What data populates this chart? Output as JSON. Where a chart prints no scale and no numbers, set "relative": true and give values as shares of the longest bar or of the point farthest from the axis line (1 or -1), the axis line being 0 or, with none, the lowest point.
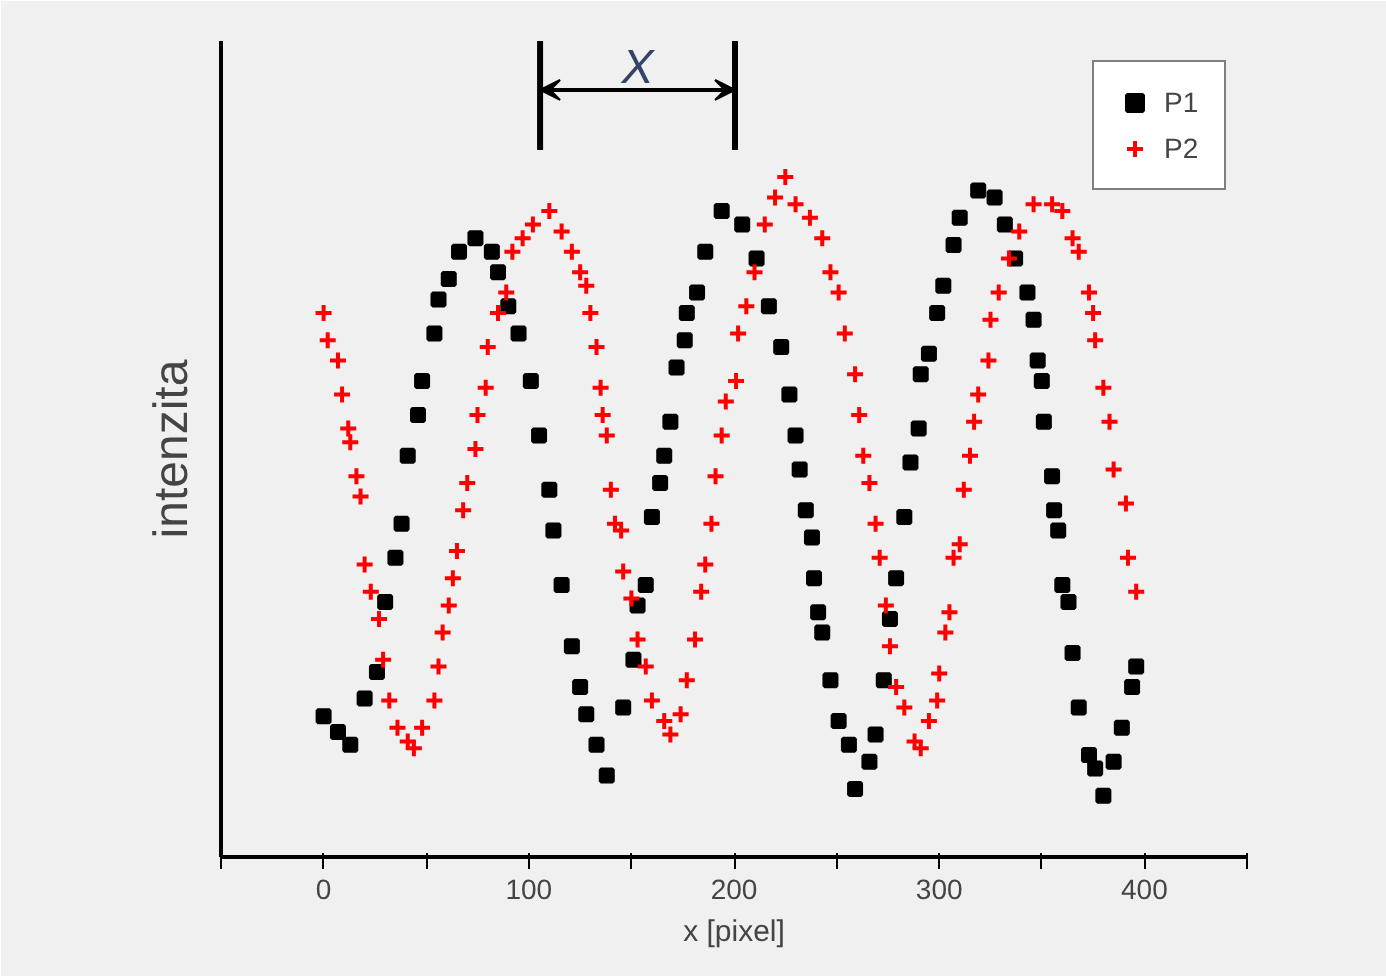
{
  "chart_data": {
    "type": "scatter",
    "relative": true,
    "xlabel": "x [pixel]",
    "ylabel": "intenzita",
    "xlim": [
      -50,
      450
    ],
    "xticks": [
      {
        "value": -50,
        "label": null
      },
      0,
      {
        "value": 50,
        "label": null
      },
      100,
      {
        "value": 150,
        "label": null
      },
      200,
      {
        "value": 250,
        "label": null
      },
      300,
      {
        "value": 350,
        "label": null
      },
      400,
      {
        "value": 450,
        "label": null
      }
    ],
    "legend": "top right",
    "grid": false,
    "annotations": [
      "X"
    ],
    "series": [
      {
        "name": "P1",
        "color": "#000000",
        "marker": "square",
        "x": [
          0,
          7,
          13,
          20,
          26,
          30,
          35,
          38,
          41,
          46,
          48,
          54,
          56,
          61,
          66,
          74,
          82,
          85,
          90,
          95,
          101,
          105,
          110,
          112,
          116,
          121,
          125,
          128,
          133,
          138,
          146,
          151,
          153,
          157,
          160,
          164,
          166,
          169,
          172,
          176,
          177,
          182,
          186,
          194,
          204,
          211,
          217,
          223,
          227,
          230,
          232,
          235,
          238,
          239,
          241,
          243,
          247,
          251,
          256,
          259,
          266,
          269,
          273,
          276,
          279,
          283,
          286,
          290,
          291,
          295,
          299,
          302,
          307,
          310,
          319,
          327,
          332,
          337,
          343,
          346,
          348,
          350,
          351,
          355,
          356,
          358,
          360,
          363,
          365,
          368,
          373,
          376,
          380,
          385,
          389,
          394,
          396
        ],
        "values": [
          0.207,
          0.184,
          0.165,
          0.233,
          0.272,
          0.375,
          0.44,
          0.49,
          0.59,
          0.65,
          0.7,
          0.77,
          0.82,
          0.85,
          0.89,
          0.91,
          0.89,
          0.86,
          0.81,
          0.77,
          0.7,
          0.62,
          0.54,
          0.48,
          0.4,
          0.31,
          0.25,
          0.21,
          0.165,
          0.12,
          0.22,
          0.29,
          0.37,
          0.4,
          0.5,
          0.55,
          0.59,
          0.64,
          0.72,
          0.76,
          0.8,
          0.83,
          0.89,
          0.95,
          0.93,
          0.88,
          0.81,
          0.75,
          0.68,
          0.62,
          0.57,
          0.51,
          0.47,
          0.41,
          0.36,
          0.33,
          0.26,
          0.2,
          0.165,
          0.1,
          0.14,
          0.18,
          0.26,
          0.35,
          0.41,
          0.5,
          0.58,
          0.63,
          0.71,
          0.74,
          0.8,
          0.84,
          0.9,
          0.94,
          0.98,
          0.97,
          0.93,
          0.88,
          0.83,
          0.79,
          0.73,
          0.7,
          0.64,
          0.56,
          0.51,
          0.48,
          0.4,
          0.375,
          0.3,
          0.22,
          0.15,
          0.13,
          0.09,
          0.14,
          0.19,
          0.25,
          0.28
        ]
      },
      {
        "name": "P2",
        "color": "#ff0000",
        "marker": "cross",
        "x": [
          0,
          2,
          7,
          9,
          12,
          13,
          16,
          18,
          20,
          23,
          27,
          29,
          32,
          36,
          41,
          44,
          48,
          54,
          56,
          58,
          61,
          63,
          65,
          68,
          70,
          74,
          75,
          79,
          80,
          85,
          89,
          92,
          97,
          102,
          110,
          116,
          121,
          125,
          128,
          130,
          133,
          135,
          136,
          138,
          140,
          142,
          145,
          146,
          150,
          153,
          157,
          160,
          166,
          169,
          174,
          177,
          181,
          184,
          186,
          189,
          191,
          194,
          196,
          201,
          202,
          206,
          210,
          215,
          220,
          225,
          230,
          237,
          243,
          247,
          251,
          254,
          259,
          261,
          263,
          266,
          269,
          271,
          274,
          276,
          279,
          283,
          288,
          291,
          295,
          299,
          300,
          303,
          305,
          307,
          310,
          312,
          315,
          317,
          319,
          324,
          325,
          329,
          334,
          339,
          346,
          355,
          360,
          365,
          368,
          373,
          375,
          376,
          380,
          383,
          385,
          391,
          392,
          396
        ],
        "values": [
          0.8,
          0.76,
          0.73,
          0.68,
          0.63,
          0.61,
          0.56,
          0.53,
          0.43,
          0.39,
          0.35,
          0.29,
          0.23,
          0.19,
          0.17,
          0.16,
          0.19,
          0.23,
          0.28,
          0.33,
          0.37,
          0.41,
          0.45,
          0.51,
          0.55,
          0.6,
          0.65,
          0.69,
          0.75,
          0.8,
          0.83,
          0.89,
          0.91,
          0.93,
          0.95,
          0.92,
          0.89,
          0.86,
          0.84,
          0.8,
          0.75,
          0.69,
          0.65,
          0.62,
          0.54,
          0.49,
          0.48,
          0.42,
          0.38,
          0.32,
          0.28,
          0.23,
          0.2,
          0.18,
          0.21,
          0.26,
          0.32,
          0.39,
          0.43,
          0.49,
          0.56,
          0.62,
          0.67,
          0.7,
          0.77,
          0.81,
          0.86,
          0.93,
          0.97,
          1.0,
          0.96,
          0.94,
          0.91,
          0.86,
          0.83,
          0.77,
          0.71,
          0.65,
          0.59,
          0.55,
          0.49,
          0.44,
          0.37,
          0.31,
          0.25,
          0.22,
          0.17,
          0.16,
          0.2,
          0.23,
          0.27,
          0.33,
          0.36,
          0.44,
          0.46,
          0.54,
          0.59,
          0.64,
          0.68,
          0.73,
          0.79,
          0.83,
          0.88,
          0.92,
          0.96,
          0.96,
          0.95,
          0.91,
          0.89,
          0.83,
          0.8,
          0.76,
          0.69,
          0.64,
          0.57,
          0.52,
          0.44,
          0.39
        ]
      }
    ]
  }
}
